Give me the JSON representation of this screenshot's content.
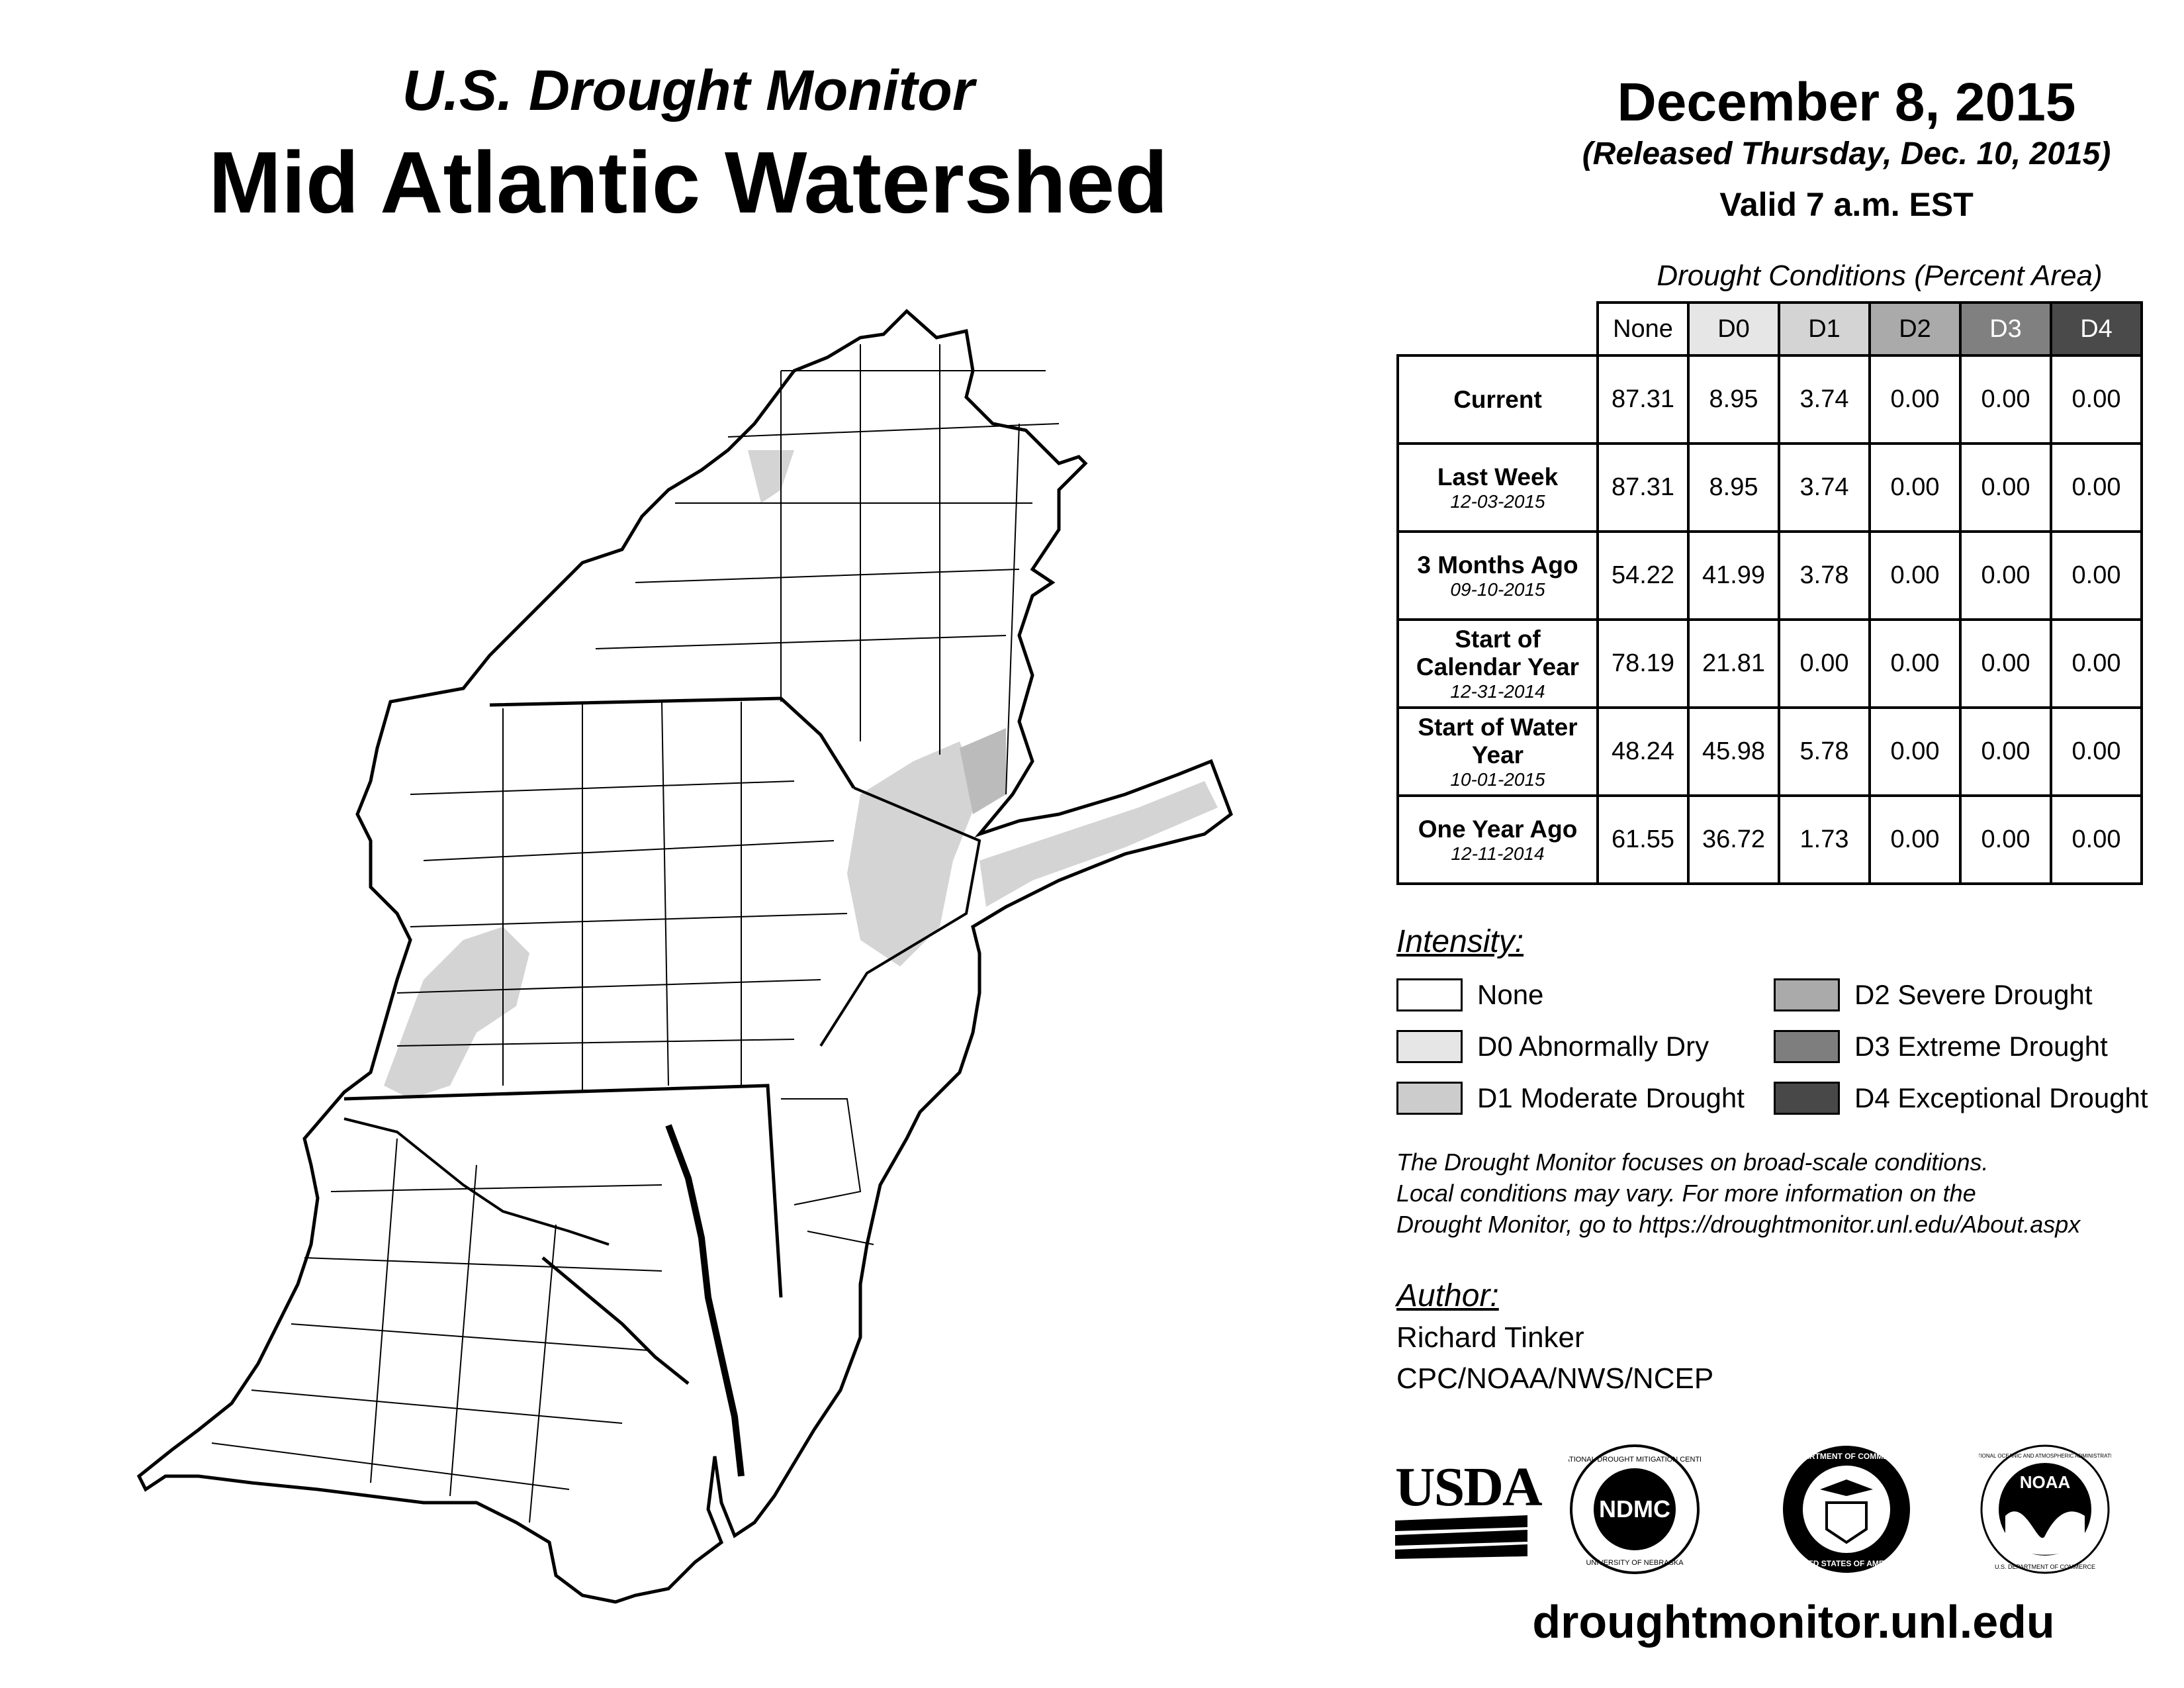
{
  "header": {
    "subtitle": "U.S. Drought Monitor",
    "title": "Mid Atlantic Watershed",
    "date": "December 8, 2015",
    "released": "(Released Thursday, Dec. 10, 2015)",
    "valid": "Valid 7 a.m. EST"
  },
  "table": {
    "title": "Drought Conditions (Percent Area)",
    "columns": [
      "None",
      "D0",
      "D1",
      "D2",
      "D3",
      "D4"
    ],
    "column_colors": [
      "#ffffff",
      "#e6e6e6",
      "#d4d4d4",
      "#aaaaaa",
      "#808080",
      "#4a4a4a"
    ],
    "rows": [
      {
        "label": "Current",
        "date": "",
        "values": [
          "87.31",
          "8.95",
          "3.74",
          "0.00",
          "0.00",
          "0.00"
        ]
      },
      {
        "label": "Last Week",
        "date": "12-03-2015",
        "values": [
          "87.31",
          "8.95",
          "3.74",
          "0.00",
          "0.00",
          "0.00"
        ]
      },
      {
        "label": "3 Months Ago",
        "date": "09-10-2015",
        "values": [
          "54.22",
          "41.99",
          "3.78",
          "0.00",
          "0.00",
          "0.00"
        ]
      },
      {
        "label": "Start of Calendar Year",
        "date": "12-31-2014",
        "values": [
          "78.19",
          "21.81",
          "0.00",
          "0.00",
          "0.00",
          "0.00"
        ]
      },
      {
        "label": "Start of Water Year",
        "date": "10-01-2015",
        "values": [
          "48.24",
          "45.98",
          "5.78",
          "0.00",
          "0.00",
          "0.00"
        ]
      },
      {
        "label": "One Year Ago",
        "date": "12-11-2014",
        "values": [
          "61.55",
          "36.72",
          "1.73",
          "0.00",
          "0.00",
          "0.00"
        ]
      }
    ]
  },
  "legend": {
    "heading": "Intensity:",
    "items": [
      {
        "label": "None",
        "color": "#ffffff"
      },
      {
        "label": "D0 Abnormally Dry",
        "color": "#e6e6e6"
      },
      {
        "label": "D1 Moderate Drought",
        "color": "#cccccc"
      },
      {
        "label": "D2 Severe Drought",
        "color": "#aaaaaa"
      },
      {
        "label": "D3 Extreme Drought",
        "color": "#7e7e7e"
      },
      {
        "label": "D4 Exceptional Drought",
        "color": "#484848"
      }
    ]
  },
  "disclaimer": {
    "line1": "The Drought Monitor focuses on broad-scale conditions.",
    "line2": "Local conditions may vary. For more information on the",
    "line3": "Drought Monitor, go to https://droughtmonitor.unl.edu/About.aspx"
  },
  "author": {
    "heading": "Author:",
    "name": "Richard Tinker",
    "org": "CPC/NOAA/NWS/NCEP"
  },
  "logos": {
    "usda": "USDA",
    "ndmc": "NDMC",
    "ndmc_ring_top": "NATIONAL DROUGHT MITIGATION CENTER",
    "ndmc_ring_bottom": "UNIVERSITY OF NEBRASKA",
    "doc_ring_top": "DEPARTMENT OF COMMERCE",
    "doc_ring_bottom": "UNITED STATES OF AMERICA",
    "noaa": "NOAA",
    "noaa_ring_top": "NATIONAL OCEANIC AND ATMOSPHERIC ADMINISTRATION",
    "noaa_ring_bottom": "U.S. DEPARTMENT OF COMMERCE"
  },
  "url": "droughtmonitor.unl.edu"
}
